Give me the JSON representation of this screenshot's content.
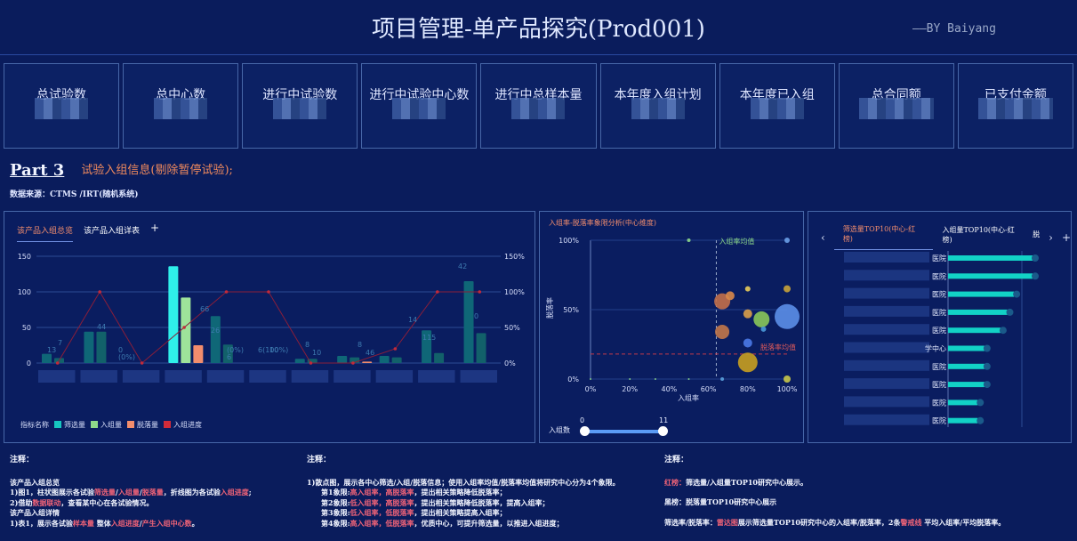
{
  "header": {
    "title": "项目管理-单产品探究(Prod001)",
    "author": "——BY Baiyang"
  },
  "kpis": [
    {
      "label": "总试验数"
    },
    {
      "label": "总中心数"
    },
    {
      "label": "进行中试验数"
    },
    {
      "label": "进行中试验中心数"
    },
    {
      "label": "进行中总样本量"
    },
    {
      "label": "本年度入组计划"
    },
    {
      "label": "本年度已入组"
    },
    {
      "label": "总合同额"
    },
    {
      "label": "已支付金额"
    }
  ],
  "section": {
    "part": "Part 3",
    "subtitle": "试验入组信息(剔除暂停试验);",
    "source": "数据来源：CTMS /IRT(随机系统)"
  },
  "panel1": {
    "tabs": [
      "该产品入组总览",
      "该产品入组详表"
    ],
    "add": "+",
    "legend_title": "指标名称",
    "legend": [
      {
        "name": "筛选量",
        "color": "#16c6c0"
      },
      {
        "name": "入组量",
        "color": "#8ed98a"
      },
      {
        "name": "脱落量",
        "color": "#f28d6d"
      },
      {
        "name": "入组进度",
        "color": "#d12b3a"
      }
    ],
    "y_left_ticks": [
      "150",
      "100",
      "50",
      "0"
    ],
    "y_right_ticks": [
      "150%",
      "100%",
      "50%",
      "0%"
    ]
  },
  "panel2": {
    "title": "入组率-脱落率象限分析(中心维度)",
    "x_label": "入组率",
    "y_label": "脱落率",
    "x_ticks": [
      "0%",
      "20%",
      "40%",
      "60%",
      "80%",
      "100%"
    ],
    "y_ticks": [
      "100%",
      "50%",
      "0%"
    ],
    "avg_x_label": "入组率均值",
    "avg_y_label": "脱落率均值",
    "slider_label": "入组数",
    "slider_min": "0",
    "slider_max": "11"
  },
  "panel3": {
    "prev": "‹",
    "tabs": [
      "筛选量TOP10(中心-红榜)",
      "入组量TOP10(中心-红榜)",
      "脱"
    ],
    "next": "›",
    "add": "+",
    "labels": [
      "医院",
      "医院",
      "医院",
      "医院",
      "医院",
      "学中心",
      "医院",
      "医院",
      "医院",
      "医院"
    ]
  },
  "chart_data": [
    {
      "type": "bar",
      "title": "",
      "y_left_range": [
        0,
        150
      ],
      "y_right_range": [
        0,
        150
      ],
      "series": [
        {
          "name": "筛选量",
          "values": [
            13,
            44,
            0,
            136,
            66,
            0,
            6,
            10,
            10,
            46,
            115
          ]
        },
        {
          "name": "入组量",
          "values": [
            7,
            44,
            0,
            92,
            26,
            0,
            6,
            8,
            8,
            14,
            42
          ]
        },
        {
          "name": "脱落量",
          "values": [
            0,
            0,
            0,
            25,
            0,
            0,
            0,
            2,
            0,
            0,
            0
          ]
        },
        {
          "name": "入组进度",
          "values": [
            0,
            100,
            0,
            50,
            100,
            100,
            0,
            0,
            20,
            100,
            100
          ]
        }
      ],
      "data_labels": [
        "13",
        "7",
        "44",
        "0",
        "(0%)",
        "66",
        "26",
        "(0%)",
        "6",
        "6(100%)",
        "10",
        "8",
        "10",
        "8",
        "46",
        "14",
        "115",
        "42",
        "0"
      ]
    },
    {
      "type": "scatter",
      "xlim": [
        0,
        100
      ],
      "ylim": [
        0,
        100
      ],
      "points": [
        {
          "x": 50,
          "y": 100,
          "r": 2,
          "color": "#8ed98a"
        },
        {
          "x": 100,
          "y": 100,
          "r": 3,
          "color": "#6aa0e8"
        },
        {
          "x": 67,
          "y": 56,
          "r": 9,
          "color": "#c2704a"
        },
        {
          "x": 71,
          "y": 60,
          "r": 5,
          "color": "#d98a4a"
        },
        {
          "x": 80,
          "y": 65,
          "r": 3,
          "color": "#e8cc5a"
        },
        {
          "x": 100,
          "y": 65,
          "r": 4,
          "color": "#c8a33a"
        },
        {
          "x": 80,
          "y": 47,
          "r": 5,
          "color": "#d9a04a"
        },
        {
          "x": 87,
          "y": 43,
          "r": 9,
          "color": "#8ac95a"
        },
        {
          "x": 100,
          "y": 45,
          "r": 14,
          "color": "#5b8fe8"
        },
        {
          "x": 88,
          "y": 36,
          "r": 3,
          "color": "#4a9ad9"
        },
        {
          "x": 67,
          "y": 34,
          "r": 8,
          "color": "#c2784a"
        },
        {
          "x": 80,
          "y": 26,
          "r": 5,
          "color": "#4a7ae8"
        },
        {
          "x": 80,
          "y": 12,
          "r": 11,
          "color": "#c8a020"
        },
        {
          "x": 100,
          "y": 0,
          "r": 4,
          "color": "#c8c84a"
        },
        {
          "x": 67,
          "y": 0,
          "r": 2,
          "color": "#5aa0d9"
        },
        {
          "x": 0,
          "y": 0,
          "r": 1,
          "color": "#8ed98a"
        },
        {
          "x": 20,
          "y": 0,
          "r": 1,
          "color": "#8ed98a"
        },
        {
          "x": 33,
          "y": 0,
          "r": 1,
          "color": "#8ed98a"
        },
        {
          "x": 50,
          "y": 0,
          "r": 1,
          "color": "#8ed98a"
        }
      ]
    },
    {
      "type": "bar",
      "values": [
        100,
        100,
        78,
        70,
        62,
        43,
        43,
        43,
        35,
        35
      ]
    }
  ],
  "notes": {
    "n1": {
      "title": "注释：",
      "l1": "该产品入组总览",
      "l2a": "1)图1，柱状图展示各试验",
      "l2b": "筛选量",
      "l2c": "/",
      "l2d": "入组量",
      "l2e": "/",
      "l2f": "脱落量",
      "l2g": "，折线图为各试验",
      "l2h": "入组进度",
      "l2i": ";",
      "l3a": "2)借助",
      "l3b": "数据联动",
      "l3c": "，查看某中心在各试验情况。",
      "l4": "该产品入组详情",
      "l5a": "1)表1，展示各试验",
      "l5b": "样本量",
      "l5c": " 整体",
      "l5d": "入组进度",
      "l5e": "/",
      "l5f": "产生入组中心数",
      "l5g": "。"
    },
    "n2": {
      "title": "注释：",
      "l1": "1)散点图，展示各中心筛选/入组/脱落信息；使用入组率均值/脱落率均值将研究中心分为4个象限。",
      "q1a": "第1象限:",
      "q1b": "高入组率，高脱落率",
      "q1c": "，提出相关策略降低脱落率；",
      "q2a": "第2象限:",
      "q2b": "低入组率，高脱落率",
      "q2c": "，提出相关策略降低脱落率，提高入组率；",
      "q3a": "第3象限:",
      "q3b": "低入组率，低脱落率",
      "q3c": "，提出相关策略提高入组率；",
      "q4a": "第4象限:",
      "q4b": "高入组率，低脱落率",
      "q4c": "，优质中心，可提升筛选量，以推进入组进度；"
    },
    "n3": {
      "title": "注释：",
      "r1a": "红榜：",
      "r1b": "筛选量/入组量TOP10研究中心展示。",
      "r2": "黑榜：脱落量TOP10研究中心展示",
      "r3a": "筛选率/脱落率：",
      "r3b": "雷达图",
      "r3c": "展示筛选量TOP10研究中心的入组率/脱落率，2条",
      "r3d": "警戒线",
      "r3e": "  平均入组率/平均脱落率。"
    }
  }
}
